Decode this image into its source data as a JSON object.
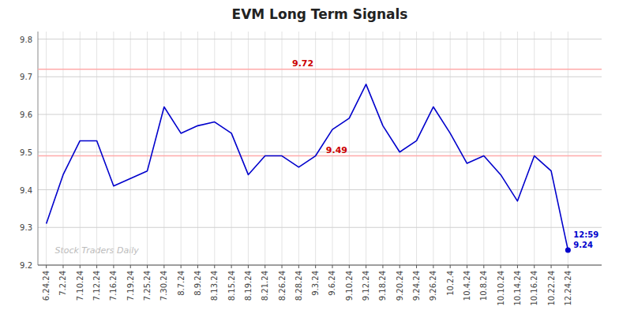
{
  "chart_data": {
    "type": "line",
    "title": "EVM Long Term Signals",
    "categories": [
      "6.24.24",
      "7.2.24",
      "7.10.24",
      "7.12.24",
      "7.16.24",
      "7.19.24",
      "7.25.24",
      "7.30.24",
      "8.7.24",
      "8.9.24",
      "8.13.24",
      "8.15.24",
      "8.19.24",
      "8.21.24",
      "8.26.24",
      "8.28.24",
      "9.3.24",
      "9.6.24",
      "9.10.24",
      "9.12.24",
      "9.18.24",
      "9.20.24",
      "9.24.24",
      "9.26.24",
      "10.2.4",
      "10.4.24",
      "10.8.24",
      "10.10.24",
      "10.14.24",
      "10.16.24",
      "10.22.24",
      "12.24.24"
    ],
    "values": [
      9.31,
      9.44,
      9.53,
      9.53,
      9.41,
      9.43,
      9.45,
      9.62,
      9.55,
      9.57,
      9.58,
      9.55,
      9.44,
      9.49,
      9.49,
      9.46,
      9.49,
      9.56,
      9.59,
      9.68,
      9.57,
      9.5,
      9.53,
      9.62,
      9.55,
      9.47,
      9.49,
      9.44,
      9.37,
      9.49,
      9.45,
      9.24
    ],
    "color": "#0000cc",
    "reference_lines": [
      {
        "value": 9.72,
        "label": "9.72",
        "color": "#ffaaaa",
        "label_color": "#cc0000"
      },
      {
        "value": 9.49,
        "label": "9.49",
        "color": "#ffaaaa",
        "label_color": "#cc0000"
      }
    ],
    "last_point": {
      "label": "12:59",
      "value": 9.24
    },
    "watermark": "Stock Traders Daily",
    "ylim": [
      9.2,
      9.82
    ],
    "yticks": [
      9.2,
      9.3,
      9.4,
      9.5,
      9.6,
      9.7,
      9.8
    ],
    "grid": true
  }
}
